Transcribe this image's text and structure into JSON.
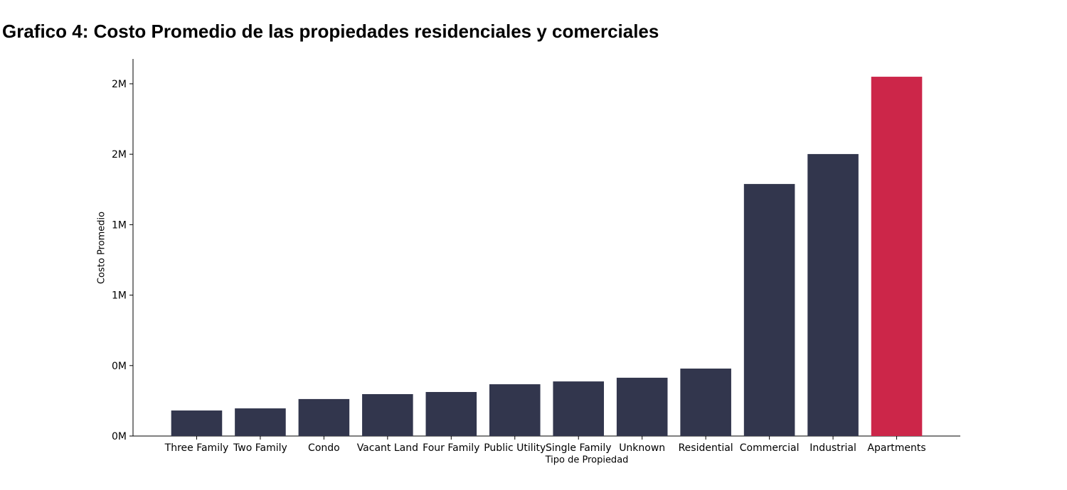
{
  "chart_data": {
    "type": "bar",
    "title": "Grafico 4: Costo Promedio de las propiedades residenciales y comerciales",
    "xlabel": "Tipo de Propiedad",
    "ylabel": "Costo Promedio",
    "categories": [
      "Three Family",
      "Two Family",
      "Condo",
      "Vacant Land",
      "Four Family",
      "Public Utility",
      "Single Family",
      "Unknown",
      "Residential",
      "Commercial",
      "Industrial",
      "Apartments"
    ],
    "values": [
      145000,
      157000,
      210000,
      238000,
      250000,
      294000,
      310000,
      331000,
      383000,
      1431000,
      1601000,
      2040000
    ],
    "colors": [
      "#32364d",
      "#32364d",
      "#32364d",
      "#32364d",
      "#32364d",
      "#32364d",
      "#32364d",
      "#32364d",
      "#32364d",
      "#32364d",
      "#32364d",
      "#cc2649"
    ],
    "ylim": [
      0,
      2141000
    ],
    "yticks": [
      {
        "value": 0,
        "label": "0M"
      },
      {
        "value": 400000,
        "label": "0M"
      },
      {
        "value": 800000,
        "label": "1M"
      },
      {
        "value": 1200000,
        "label": "1M"
      },
      {
        "value": 1600000,
        "label": "2M"
      },
      {
        "value": 2000000,
        "label": "2M"
      }
    ],
    "grid": false
  }
}
